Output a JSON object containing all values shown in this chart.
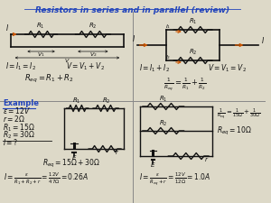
{
  "title": "Resistors in series and in parallel (review)",
  "bg_color": "#ddd9c8",
  "title_color": "#2244bb",
  "text_color": "#111111",
  "orange_color": "#cc5500",
  "divider_color": "#888888",
  "fig_w": 3.0,
  "fig_h": 2.25,
  "dpi": 100
}
